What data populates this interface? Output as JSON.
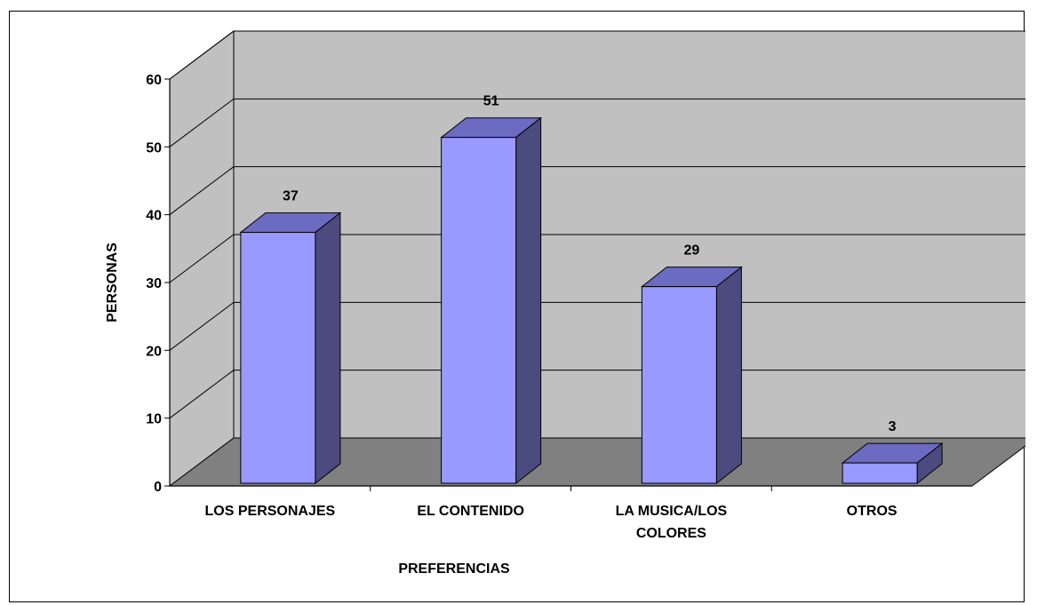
{
  "chart_data": {
    "type": "bar",
    "style": "3d-column",
    "categories": [
      "LOS PERSONAJES",
      "EL CONTENIDO",
      "LA MUSICA/LOS COLORES",
      "OTROS"
    ],
    "category_lines": [
      [
        "LOS PERSONAJES"
      ],
      [
        "EL CONTENIDO"
      ],
      [
        "LA MUSICA/LOS",
        "COLORES"
      ],
      [
        "OTROS"
      ]
    ],
    "values": [
      37,
      51,
      29,
      3
    ],
    "data_labels": [
      "37",
      "51",
      "29",
      "3"
    ],
    "title": "",
    "xlabel": "PREFERENCIAS",
    "ylabel": "PERSONAS",
    "ylim": [
      0,
      60
    ],
    "yticks": [
      "0",
      "10",
      "20",
      "30",
      "40",
      "50",
      "60"
    ],
    "grid": true,
    "legend": "none",
    "colors": {
      "bar_front": "#9999ff",
      "bar_top": "#6b6bc2",
      "bar_side": "#4b4b7f",
      "wall": "#c0c0c0",
      "floor": "#808080",
      "gridline": "#000000"
    }
  }
}
